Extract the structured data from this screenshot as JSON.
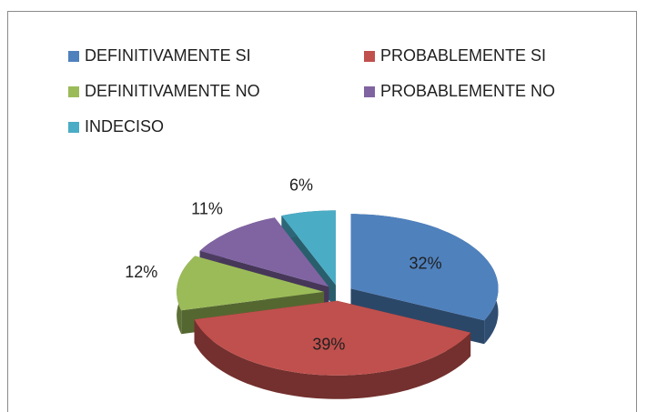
{
  "chart_data": {
    "type": "pie",
    "categories": [
      "DEFINITIVAMENTE SI",
      "PROBABLEMENTE SI",
      "DEFINITIVAMENTE NO",
      "PROBABLEMENTE NO",
      "INDECISO"
    ],
    "values": [
      32,
      39,
      12,
      11,
      6
    ],
    "value_labels": [
      "32%",
      "39%",
      "12%",
      "11%",
      "6%"
    ],
    "colors": [
      "#4f81bd",
      "#c0504d",
      "#9bbb59",
      "#8064a2",
      "#4bacc6"
    ],
    "legend": "top"
  }
}
